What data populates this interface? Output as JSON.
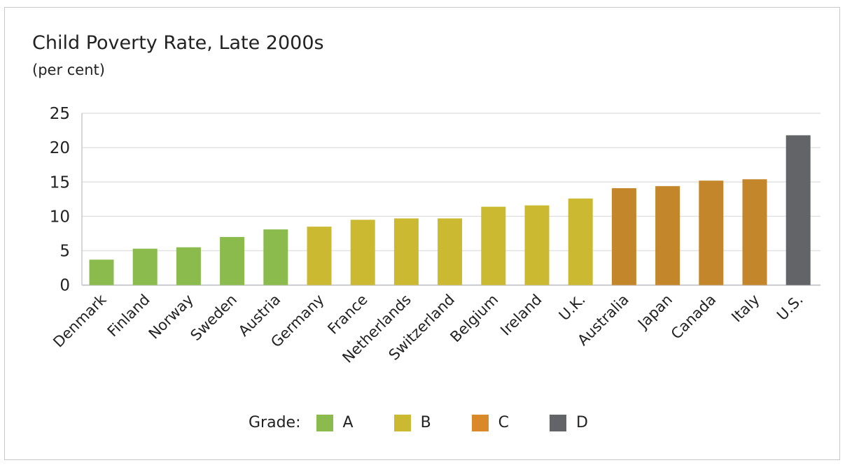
{
  "chart_data": {
    "type": "bar",
    "title": "Child Poverty Rate, Late 2000s",
    "subtitle": "(per cent)",
    "categories": [
      "Denmark",
      "Finland",
      "Norway",
      "Sweden",
      "Austria",
      "Germany",
      "France",
      "Netherlands",
      "Switzerland",
      "Belgium",
      "Ireland",
      "U.K.",
      "Australia",
      "Japan",
      "Canada",
      "Italy",
      "U.S."
    ],
    "values": [
      3.7,
      5.3,
      5.5,
      7.0,
      8.1,
      8.5,
      9.5,
      9.7,
      9.7,
      11.4,
      11.6,
      12.6,
      14.1,
      14.4,
      15.2,
      15.4,
      21.8
    ],
    "grades": [
      "A",
      "A",
      "A",
      "A",
      "A",
      "B",
      "B",
      "B",
      "B",
      "B",
      "B",
      "B",
      "C",
      "C",
      "C",
      "C",
      "D"
    ],
    "ylim": [
      0,
      25
    ],
    "yticks": [
      0,
      5,
      10,
      15,
      20,
      25
    ],
    "grid": true,
    "legend": {
      "title": "Grade:",
      "placement": "bottom",
      "entries": [
        {
          "label": "A",
          "color": "#8bbb4c"
        },
        {
          "label": "B",
          "color": "#cbb931"
        },
        {
          "label": "C",
          "color": "#c4862a"
        },
        {
          "label": "D",
          "color": "#636467"
        }
      ]
    },
    "bar_colors": {
      "A": "#8bbb4c",
      "B": "#cbb931",
      "C": "#c4862a",
      "D": "#636467"
    }
  }
}
